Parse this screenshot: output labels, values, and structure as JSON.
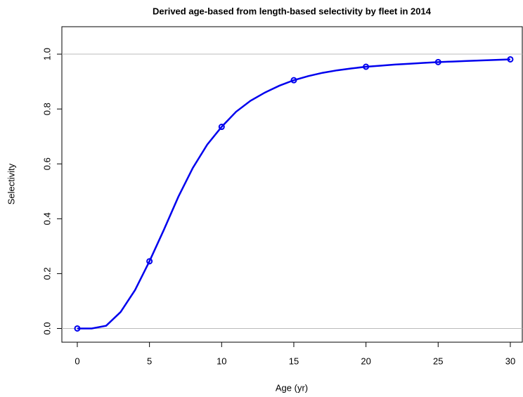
{
  "chart_data": {
    "type": "line",
    "title": "Derived age-based from length-based selectivity by fleet in 2014",
    "x_label": "Age (yr)",
    "y_label": "Selectivity",
    "x": [
      0,
      1,
      2,
      3,
      4,
      5,
      6,
      7,
      8,
      9,
      10,
      11,
      12,
      13,
      14,
      15,
      16,
      17,
      18,
      19,
      20,
      21,
      22,
      23,
      24,
      25,
      26,
      27,
      28,
      29,
      30
    ],
    "series": [
      {
        "color": "#0000ee",
        "marker_step": 5,
        "values": [
          0.0,
          0.0,
          0.01,
          0.06,
          0.14,
          0.245,
          0.36,
          0.48,
          0.585,
          0.67,
          0.735,
          0.79,
          0.83,
          0.86,
          0.885,
          0.905,
          0.92,
          0.932,
          0.941,
          0.948,
          0.954,
          0.958,
          0.962,
          0.965,
          0.968,
          0.971,
          0.973,
          0.975,
          0.977,
          0.979,
          0.981
        ]
      }
    ],
    "xlim": [
      -1.07,
      30.83
    ],
    "ylim": [
      -0.05,
      1.1
    ],
    "xticks": [
      0,
      5,
      10,
      15,
      20,
      25,
      30
    ],
    "yticks": [
      {
        "value": 0,
        "label": "0.0"
      },
      {
        "value": 0.2,
        "label": "0.2"
      },
      {
        "value": 0.4,
        "label": "0.4"
      },
      {
        "value": 0.6,
        "label": "0.6"
      },
      {
        "value": 0.8,
        "label": "0.8"
      },
      {
        "value": 1,
        "label": "1.0"
      }
    ],
    "hlines": [
      0,
      1
    ],
    "hline_color": "#bbbbbb"
  }
}
